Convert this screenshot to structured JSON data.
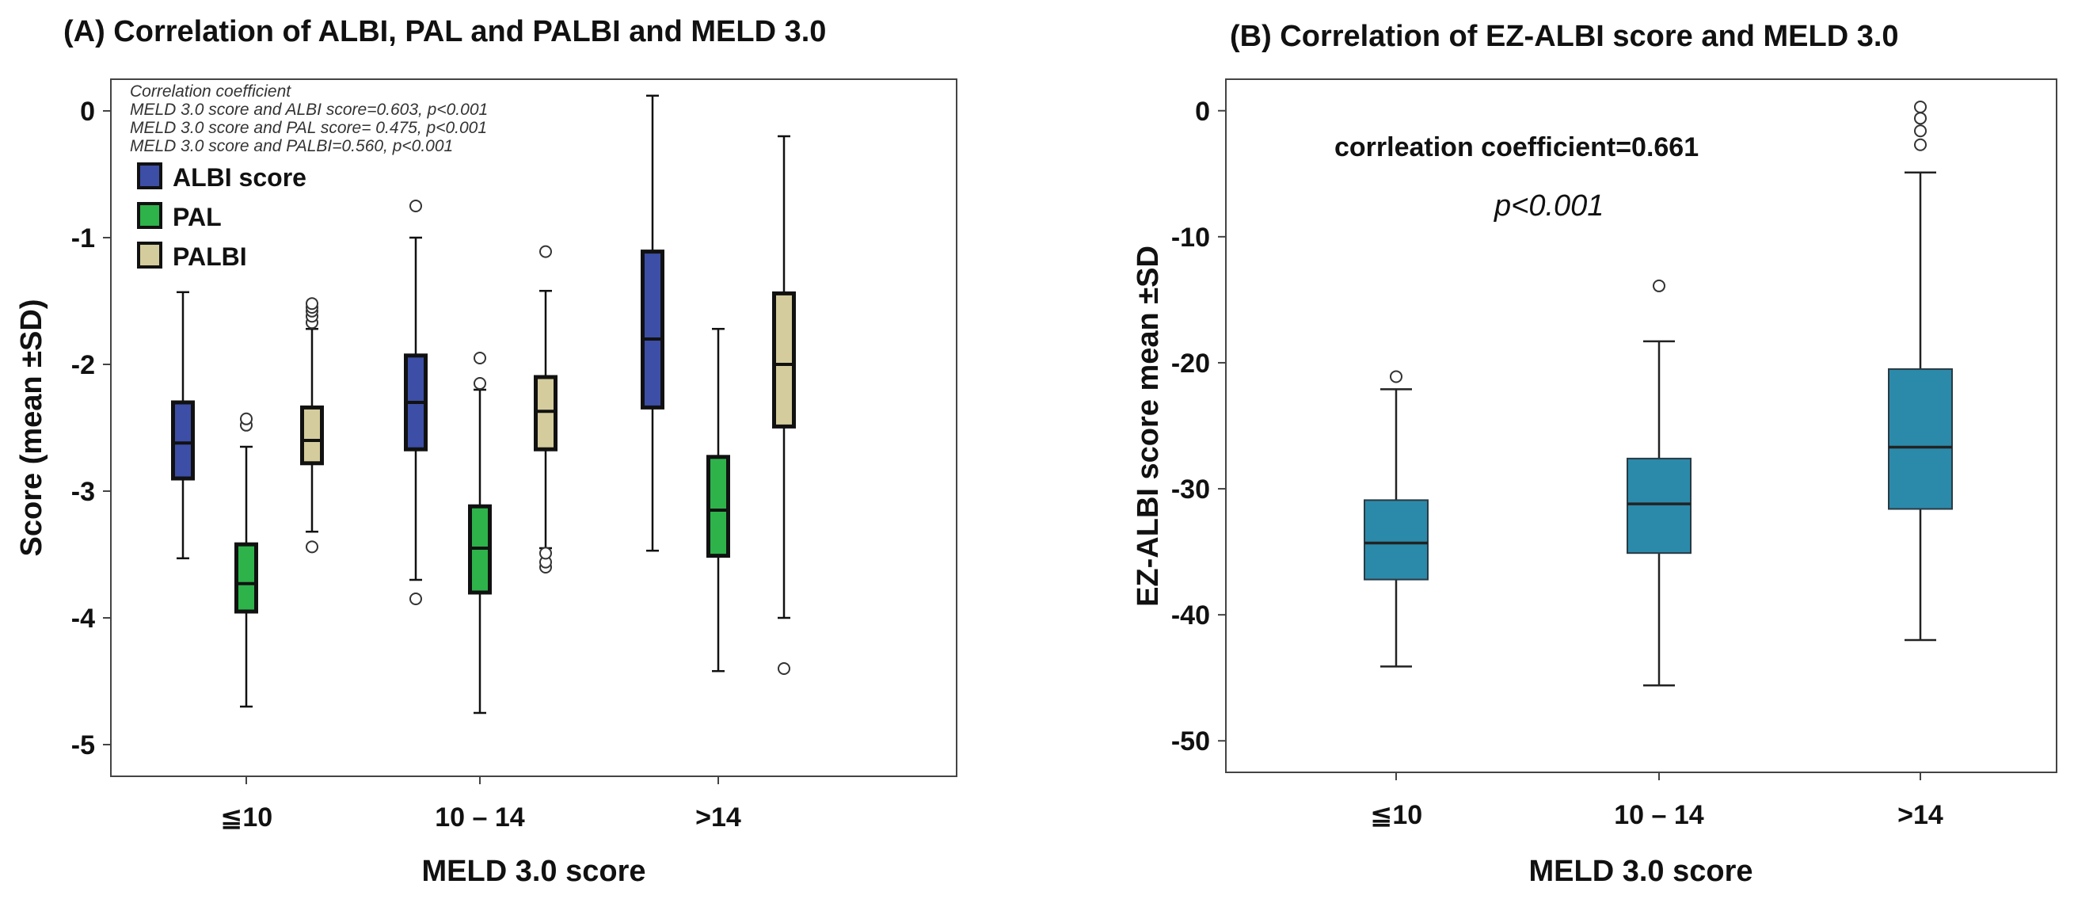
{
  "chart_data": [
    {
      "type": "boxplot",
      "title": "(A) Correlation of ALBI, PAL and PALBI and MELD 3.0",
      "xlabel": "MELD 3.0 score",
      "ylabel": "Score (mean ±SD)",
      "categories": [
        "≦10",
        "10 – 14",
        ">14"
      ],
      "ylim": [
        -5.25,
        0.25
      ],
      "yticks": [
        0,
        -1,
        -2,
        -3,
        -4,
        -5
      ],
      "ytick_labels": [
        "0",
        "-1",
        "-2",
        "-3",
        "-4",
        "-5"
      ],
      "annotation": [
        "Correlation coefficient",
        "MELD 3.0 score and ALBI score=0.603, p<0.001",
        "MELD 3.0 score and PAL score= 0.475, p<0.001",
        "MELD 3.0 score and PALBI=0.560, p<0.001"
      ],
      "legend_position": "top-left",
      "series": [
        {
          "name": "ALBI score",
          "color": "#3c4ea6",
          "boxes": [
            {
              "whisker_low": -3.53,
              "q1": -2.9,
              "median": -2.62,
              "q3": -2.3,
              "whisker_high": -1.43,
              "outliers": []
            },
            {
              "whisker_low": -3.7,
              "q1": -2.67,
              "median": -2.3,
              "q3": -1.93,
              "whisker_high": -1.0,
              "outliers": [
                -3.85,
                -0.75
              ]
            },
            {
              "whisker_low": -3.47,
              "q1": -2.34,
              "median": -1.8,
              "q3": -1.11,
              "whisker_high": 0.12,
              "outliers": []
            }
          ]
        },
        {
          "name": "PAL",
          "color": "#2db34a",
          "boxes": [
            {
              "whisker_low": -4.7,
              "q1": -3.95,
              "median": -3.73,
              "q3": -3.42,
              "whisker_high": -2.65,
              "outliers": [
                -2.48,
                -2.43
              ]
            },
            {
              "whisker_low": -4.75,
              "q1": -3.8,
              "median": -3.45,
              "q3": -3.12,
              "whisker_high": -2.2,
              "outliers": [
                -2.15,
                -1.95
              ]
            },
            {
              "whisker_low": -4.42,
              "q1": -3.51,
              "median": -3.15,
              "q3": -2.73,
              "whisker_high": -1.72,
              "outliers": []
            }
          ]
        },
        {
          "name": "PALBI",
          "color": "#d4cc9c",
          "boxes": [
            {
              "whisker_low": -3.32,
              "q1": -2.78,
              "median": -2.6,
              "q3": -2.34,
              "whisker_high": -1.72,
              "outliers": [
                -3.44,
                -1.67,
                -1.62,
                -1.58,
                -1.55,
                -1.52
              ]
            },
            {
              "whisker_low": -3.45,
              "q1": -2.67,
              "median": -2.37,
              "q3": -2.1,
              "whisker_high": -1.42,
              "outliers": [
                -3.6,
                -3.56,
                -3.49,
                -1.11
              ]
            },
            {
              "whisker_low": -4.0,
              "q1": -2.49,
              "median": -2.0,
              "q3": -1.44,
              "whisker_high": -0.2,
              "outliers": [
                -4.4
              ]
            }
          ]
        }
      ]
    },
    {
      "type": "boxplot",
      "title": "(B) Correlation of EZ-ALBI score and MELD 3.0",
      "xlabel": "MELD 3.0 score",
      "ylabel": "EZ-ALBI score mean ±SD",
      "categories": [
        "≦10",
        "10 – 14",
        ">14"
      ],
      "ylim": [
        -52.5,
        2.5
      ],
      "yticks": [
        0,
        -10,
        -20,
        -30,
        -40,
        -50
      ],
      "ytick_labels": [
        "0",
        "-10",
        "-20",
        "-30",
        "-40",
        "-50"
      ],
      "annotation_corr": "corrleation coefficient=0.661",
      "annotation_p": "p<0.001",
      "series": [
        {
          "name": "EZ-ALBI",
          "color": "#2b8aaa",
          "boxes": [
            {
              "whisker_low": -44.1,
              "q1": -37.2,
              "median": -34.3,
              "q3": -30.9,
              "whisker_high": -22.1,
              "outliers": [
                -21.1
              ]
            },
            {
              "whisker_low": -45.6,
              "q1": -35.1,
              "median": -31.2,
              "q3": -27.6,
              "whisker_high": -18.3,
              "outliers": [
                -13.9
              ]
            },
            {
              "whisker_low": -42.0,
              "q1": -31.6,
              "median": -26.7,
              "q3": -20.5,
              "whisker_high": -4.9,
              "outliers": [
                -2.7,
                -1.6,
                -0.6,
                0.3
              ]
            }
          ]
        }
      ]
    }
  ]
}
